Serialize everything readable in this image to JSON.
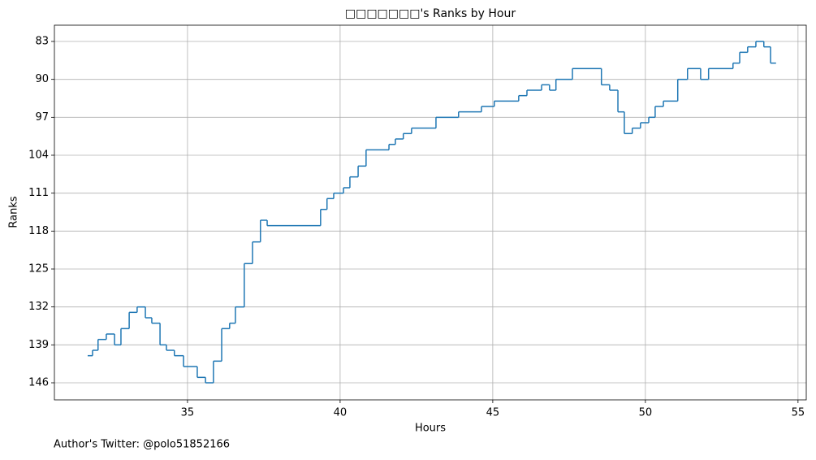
{
  "chart_data": {
    "type": "line",
    "drawstyle": "steps-post",
    "title": "□□□□□□□'s Ranks by Hour",
    "x_label": "Hours",
    "y_label": "Ranks",
    "footer": "Author's Twitter: @polo51852166",
    "color": "#1f77b4",
    "grid": true,
    "xlim": [
      30.64,
      55.27
    ],
    "ylim": [
      149.15,
      80
    ],
    "xticks": [
      35,
      40,
      45,
      50,
      55
    ],
    "yticks": [
      83,
      90,
      97,
      104,
      111,
      118,
      125,
      132,
      139,
      146
    ],
    "x": [
      31.73,
      31.89,
      32.07,
      32.34,
      32.61,
      32.82,
      33.09,
      33.35,
      33.62,
      33.83,
      34.1,
      34.31,
      34.57,
      34.87,
      35.32,
      35.59,
      35.85,
      36.12,
      36.38,
      36.57,
      36.86,
      37.13,
      37.39,
      37.61,
      39.36,
      39.57,
      39.79,
      40.11,
      40.32,
      40.59,
      40.85,
      41.6,
      41.81,
      42.07,
      42.34,
      43.14,
      43.88,
      44.63,
      45.05,
      45.85,
      46.12,
      46.6,
      46.86,
      47.07,
      47.61,
      48.56,
      48.83,
      49.1,
      49.31,
      49.57,
      49.84,
      50.11,
      50.32,
      50.59,
      51.06,
      51.38,
      51.81,
      52.07,
      52.87,
      53.09,
      53.35,
      53.62,
      53.88,
      54.1,
      54.28
    ],
    "values": [
      141,
      140,
      138,
      137,
      139,
      136,
      133,
      132,
      134,
      135,
      139,
      140,
      141,
      143,
      145,
      146,
      142,
      136,
      135,
      132,
      124,
      120,
      116,
      117,
      114,
      112,
      111,
      110,
      108,
      106,
      103,
      102,
      101,
      100,
      99,
      97,
      96,
      95,
      94,
      93,
      92,
      91,
      92,
      90,
      88,
      91,
      92,
      96,
      100,
      99,
      98,
      97,
      95,
      94,
      90,
      88,
      90,
      88,
      87,
      85,
      84,
      83,
      84,
      87,
      87
    ]
  }
}
